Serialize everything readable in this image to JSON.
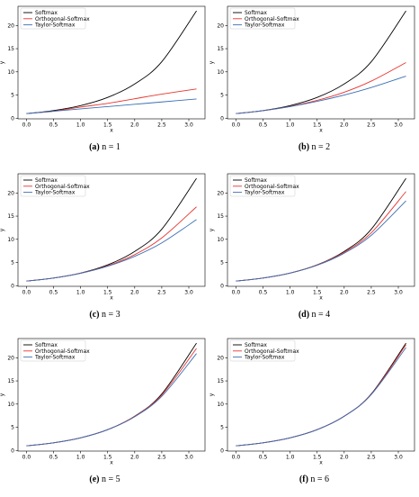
{
  "series_colors": {
    "Softmax": "#000000",
    "Orthogonal-Softmax": "#e8352e",
    "Taylor-Softmax": "#3b6fb6"
  },
  "chart_data": [
    {
      "type": "line",
      "caption_label": "(a)",
      "caption_text": " n = 1",
      "xlabel": "x",
      "ylabel": "y",
      "xlim": [
        -0.157,
        3.299
      ],
      "ylim": [
        -0.14,
        24.14
      ],
      "xticks": [
        0.0,
        0.5,
        1.0,
        1.5,
        2.0,
        2.5,
        3.0
      ],
      "yticks": [
        0,
        5,
        10,
        15,
        20
      ],
      "legend": [
        "Softmax",
        "Orthogonal-Softmax",
        "Taylor-Softmax"
      ],
      "legend_loc": "upper-left",
      "x": [
        0.0,
        0.5,
        1.0,
        1.5,
        2.0,
        2.5,
        3.1416
      ],
      "series": [
        {
          "name": "Softmax",
          "values": [
            1.0,
            1.65,
            2.72,
            4.48,
            7.39,
            12.18,
            23.14
          ]
        },
        {
          "name": "Orthogonal-Softmax",
          "values": [
            1.0,
            1.5,
            2.4,
            3.2,
            4.2,
            5.2,
            6.3
          ]
        },
        {
          "name": "Taylor-Softmax",
          "values": [
            1.0,
            1.5,
            2.0,
            2.5,
            3.0,
            3.5,
            4.14
          ]
        }
      ]
    },
    {
      "type": "line",
      "caption_label": "(b)",
      "caption_text": " n = 2",
      "xlabel": "x",
      "ylabel": "y",
      "xlim": [
        -0.157,
        3.299
      ],
      "ylim": [
        -0.14,
        24.14
      ],
      "xticks": [
        0.0,
        0.5,
        1.0,
        1.5,
        2.0,
        2.5,
        3.0
      ],
      "yticks": [
        0,
        5,
        10,
        15,
        20
      ],
      "legend": [
        "Softmax",
        "Orthogonal-Softmax",
        "Taylor-Softmax"
      ],
      "legend_loc": "upper-left",
      "x": [
        0.0,
        0.5,
        1.0,
        1.5,
        2.0,
        2.5,
        3.1416
      ],
      "series": [
        {
          "name": "Softmax",
          "values": [
            1.0,
            1.65,
            2.72,
            4.48,
            7.39,
            12.18,
            23.14
          ]
        },
        {
          "name": "Orthogonal-Softmax",
          "values": [
            1.0,
            1.62,
            2.55,
            3.85,
            5.6,
            8.0,
            12.0
          ]
        },
        {
          "name": "Taylor-Softmax",
          "values": [
            1.0,
            1.63,
            2.5,
            3.63,
            5.0,
            6.63,
            9.08
          ]
        }
      ]
    },
    {
      "type": "line",
      "caption_label": "(c)",
      "caption_text": " n = 3",
      "xlabel": "x",
      "ylabel": "y",
      "xlim": [
        -0.157,
        3.299
      ],
      "ylim": [
        -0.14,
        24.14
      ],
      "xticks": [
        0.0,
        0.5,
        1.0,
        1.5,
        2.0,
        2.5,
        3.0
      ],
      "yticks": [
        0,
        5,
        10,
        15,
        20
      ],
      "legend": [
        "Softmax",
        "Orthogonal-Softmax",
        "Taylor-Softmax"
      ],
      "legend_loc": "upper-left",
      "x": [
        0.0,
        0.5,
        1.0,
        1.5,
        2.0,
        2.5,
        3.1416
      ],
      "series": [
        {
          "name": "Softmax",
          "values": [
            1.0,
            1.65,
            2.72,
            4.48,
            7.39,
            12.18,
            23.14
          ]
        },
        {
          "name": "Orthogonal-Softmax",
          "values": [
            1.0,
            1.65,
            2.7,
            4.3,
            6.7,
            10.3,
            17.0
          ]
        },
        {
          "name": "Taylor-Softmax",
          "values": [
            1.0,
            1.65,
            2.67,
            4.19,
            6.33,
            9.23,
            14.25
          ]
        }
      ]
    },
    {
      "type": "line",
      "caption_label": "(d)",
      "caption_text": " n = 4",
      "xlabel": "x",
      "ylabel": "y",
      "xlim": [
        -0.157,
        3.299
      ],
      "ylim": [
        -0.14,
        24.14
      ],
      "xticks": [
        0.0,
        0.5,
        1.0,
        1.5,
        2.0,
        2.5,
        3.0
      ],
      "yticks": [
        0,
        5,
        10,
        15,
        20
      ],
      "legend": [
        "Softmax",
        "Orthogonal-Softmax",
        "Taylor-Softmax"
      ],
      "legend_loc": "upper-left",
      "x": [
        0.0,
        0.5,
        1.0,
        1.5,
        2.0,
        2.5,
        3.1416
      ],
      "series": [
        {
          "name": "Softmax",
          "values": [
            1.0,
            1.65,
            2.72,
            4.48,
            7.39,
            12.18,
            23.14
          ]
        },
        {
          "name": "Orthogonal-Softmax",
          "values": [
            1.0,
            1.65,
            2.72,
            4.45,
            7.2,
            11.4,
            20.3
          ]
        },
        {
          "name": "Taylor-Softmax",
          "values": [
            1.0,
            1.65,
            2.71,
            4.4,
            7.0,
            10.86,
            18.31
          ]
        }
      ]
    },
    {
      "type": "line",
      "caption_label": "(e)",
      "caption_text": " n = 5",
      "xlabel": "x",
      "ylabel": "y",
      "xlim": [
        -0.157,
        3.299
      ],
      "ylim": [
        -0.14,
        24.14
      ],
      "xticks": [
        0.0,
        0.5,
        1.0,
        1.5,
        2.0,
        2.5,
        3.0
      ],
      "yticks": [
        0,
        5,
        10,
        15,
        20
      ],
      "legend": [
        "Softmax",
        "Orthogonal-Softmax",
        "Taylor-Softmax"
      ],
      "legend_loc": "upper-left",
      "x": [
        0.0,
        0.5,
        1.0,
        1.5,
        2.0,
        2.5,
        3.1416
      ],
      "series": [
        {
          "name": "Softmax",
          "values": [
            1.0,
            1.65,
            2.72,
            4.48,
            7.39,
            12.18,
            23.14
          ]
        },
        {
          "name": "Orthogonal-Softmax",
          "values": [
            1.0,
            1.65,
            2.72,
            4.48,
            7.35,
            11.95,
            22.0
          ]
        },
        {
          "name": "Taylor-Softmax",
          "values": [
            1.0,
            1.65,
            2.72,
            4.48,
            7.27,
            11.67,
            20.9
          ]
        }
      ]
    },
    {
      "type": "line",
      "caption_label": "(f)",
      "caption_text": " n = 6",
      "xlabel": "x",
      "ylabel": "y",
      "xlim": [
        -0.157,
        3.299
      ],
      "ylim": [
        -0.14,
        24.14
      ],
      "xticks": [
        0.0,
        0.5,
        1.0,
        1.5,
        2.0,
        2.5,
        3.0
      ],
      "yticks": [
        0,
        5,
        10,
        15,
        20
      ],
      "legend": [
        "Softmax",
        "Orthogonal-Softmax",
        "Taylor-Softmax"
      ],
      "legend_loc": "upper-left",
      "x": [
        0.0,
        0.5,
        1.0,
        1.5,
        2.0,
        2.5,
        3.1416
      ],
      "series": [
        {
          "name": "Softmax",
          "values": [
            1.0,
            1.65,
            2.72,
            4.48,
            7.39,
            12.18,
            23.14
          ]
        },
        {
          "name": "Orthogonal-Softmax",
          "values": [
            1.0,
            1.65,
            2.72,
            4.48,
            7.38,
            12.1,
            22.8
          ]
        },
        {
          "name": "Taylor-Softmax",
          "values": [
            1.0,
            1.65,
            2.72,
            4.48,
            7.36,
            12.05,
            22.2
          ]
        }
      ]
    }
  ]
}
